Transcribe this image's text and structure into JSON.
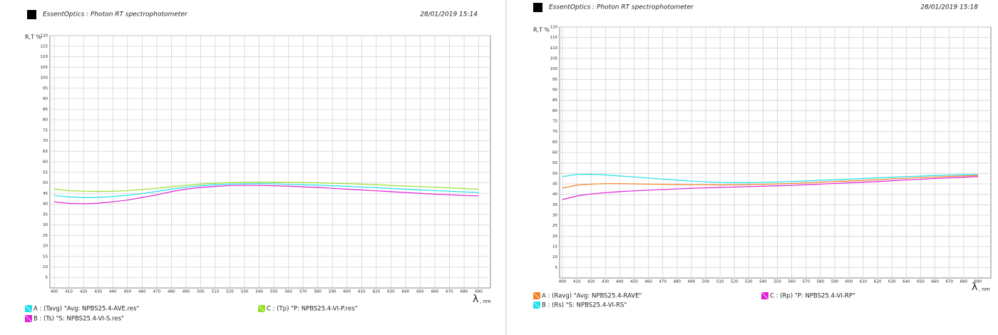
{
  "chart_data": [
    {
      "type": "line",
      "source": "EssentOptics : Photon RT spectrophotometer",
      "timestamp": "28/01/2019 15:14",
      "y_label": "R,T %",
      "x_label": "λ",
      "x_unit": ", nm",
      "x": [
        400,
        410,
        420,
        430,
        440,
        450,
        460,
        470,
        480,
        490,
        500,
        510,
        520,
        530,
        540,
        550,
        560,
        570,
        580,
        590,
        600,
        610,
        620,
        630,
        640,
        650,
        660,
        670,
        680,
        690
      ],
      "series": [
        {
          "name": "A : (Tavg) \"Avg: NPBS25.4-AVE.res\"",
          "color": "#22e0e8",
          "values": [
            44,
            43.3,
            43,
            43.1,
            43.5,
            44.1,
            44.9,
            45.9,
            47,
            47.9,
            48.6,
            49.1,
            49.4,
            49.5,
            49.6,
            49.5,
            49.3,
            49.1,
            48.9,
            48.6,
            48.3,
            48,
            47.7,
            47.3,
            47,
            46.6,
            46.3,
            46,
            45.7,
            45.4
          ]
        },
        {
          "name": "B : (Ts) \"S: NPBS25.4-VI-S.res\"",
          "color": "#e020d8",
          "values": [
            41,
            40.2,
            40,
            40.3,
            41,
            41.8,
            43,
            44.3,
            45.8,
            47,
            47.8,
            48.3,
            48.7,
            48.8,
            48.8,
            48.6,
            48.4,
            48.1,
            47.8,
            47.4,
            47,
            46.6,
            46.2,
            45.8,
            45.4,
            45,
            44.6,
            44.3,
            44,
            43.8
          ]
        },
        {
          "name": "C : (Tp) \"P: NPBS25.4-VI-P.res\"",
          "color": "#98e028",
          "values": [
            47,
            46.3,
            46,
            45.9,
            46,
            46.3,
            46.8,
            47.4,
            48.1,
            48.8,
            49.4,
            49.8,
            50.1,
            50.2,
            50.3,
            50.3,
            50.2,
            50.1,
            50,
            49.8,
            49.6,
            49.4,
            49.1,
            48.8,
            48.5,
            48.2,
            47.9,
            47.6,
            47.3,
            47
          ]
        }
      ],
      "xlim": [
        397,
        698
      ],
      "xticks": [
        400,
        410,
        420,
        430,
        440,
        450,
        460,
        470,
        480,
        490,
        500,
        510,
        520,
        530,
        540,
        550,
        560,
        570,
        580,
        590,
        600,
        610,
        620,
        630,
        640,
        650,
        660,
        670,
        680,
        690
      ],
      "ylim": [
        0,
        120
      ],
      "yticks": [
        5,
        10,
        15,
        20,
        25,
        30,
        35,
        40,
        45,
        50,
        55,
        60,
        65,
        70,
        75,
        80,
        85,
        90,
        95,
        100,
        105,
        110,
        115,
        120
      ],
      "grid": true
    },
    {
      "type": "line",
      "source": "EssentOptics : Photon RT spectrophotometer",
      "timestamp": "28/01/2019 15:18",
      "y_label": "R,T %",
      "x_label": "λ",
      "x_unit": ", nm",
      "x": [
        400,
        410,
        420,
        430,
        440,
        450,
        460,
        470,
        480,
        490,
        500,
        510,
        520,
        530,
        540,
        550,
        560,
        570,
        580,
        590,
        600,
        610,
        620,
        630,
        640,
        650,
        660,
        670,
        680,
        690
      ],
      "series": [
        {
          "name": "A : (Ravg) \"Avg: NPBS25.4-RAVE\"",
          "color": "#f08020",
          "values": [
            43,
            44.4,
            44.9,
            45.1,
            45.1,
            45,
            44.9,
            44.8,
            44.7,
            44.6,
            44.6,
            44.5,
            44.6,
            44.7,
            44.8,
            45,
            45.2,
            45.5,
            45.8,
            46.1,
            46.4,
            46.7,
            47,
            47.4,
            47.7,
            48,
            48.3,
            48.6,
            48.8,
            49
          ]
        },
        {
          "name": "B : (Rs) \"S: NPBS25.4-VI-RS\"",
          "color": "#22e0e8",
          "values": [
            48.5,
            49.5,
            49.6,
            49.3,
            48.8,
            48.3,
            47.8,
            47.3,
            46.8,
            46.3,
            46,
            45.7,
            45.6,
            45.6,
            45.7,
            45.9,
            46.1,
            46.4,
            46.7,
            47,
            47.3,
            47.6,
            47.9,
            48.2,
            48.5,
            48.7,
            49,
            49.2,
            49.4,
            49.5
          ]
        },
        {
          "name": "C : (Rp) \"P: NPBS25.4-VI-RP\"",
          "color": "#e020d8",
          "values": [
            37.5,
            39.2,
            40.2,
            40.8,
            41.3,
            41.7,
            42,
            42.3,
            42.6,
            42.9,
            43.1,
            43.3,
            43.5,
            43.7,
            43.9,
            44.1,
            44.3,
            44.6,
            44.9,
            45.2,
            45.5,
            45.8,
            46.1,
            46.5,
            46.9,
            47.2,
            47.6,
            47.9,
            48.2,
            48.5
          ]
        }
      ],
      "xlim": [
        398,
        699
      ],
      "xticks": [
        400,
        410,
        420,
        430,
        440,
        450,
        460,
        470,
        480,
        490,
        500,
        510,
        520,
        530,
        540,
        550,
        560,
        570,
        580,
        590,
        600,
        610,
        620,
        630,
        640,
        650,
        660,
        670,
        680,
        690
      ],
      "ylim": [
        0,
        120
      ],
      "yticks": [
        5,
        10,
        15,
        20,
        25,
        30,
        35,
        40,
        45,
        50,
        55,
        60,
        65,
        70,
        75,
        80,
        85,
        90,
        95,
        100,
        105,
        110,
        115,
        120
      ],
      "grid": true
    }
  ]
}
